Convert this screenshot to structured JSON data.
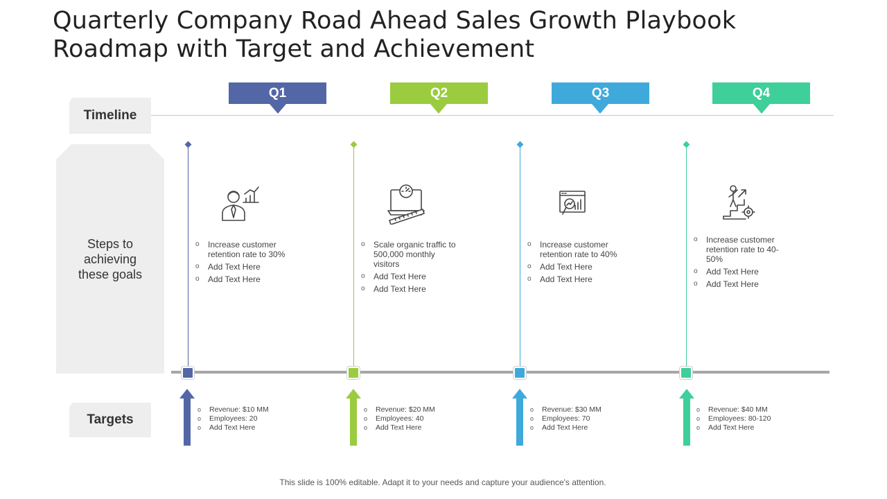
{
  "title": "Quarterly Company Road Ahead Sales Growth Playbook Roadmap with Target and Achievement",
  "row_labels": {
    "timeline": "Timeline",
    "steps": "Steps to achieving these goals",
    "targets": "Targets"
  },
  "quarters": [
    {
      "label": "Q1",
      "color": "#5367a6",
      "icon": "manager-growth-chart-icon",
      "steps": [
        "Increase customer retention rate to 30%",
        "Add Text Here",
        "Add Text Here"
      ],
      "targets": [
        "Revenue: $10 MM",
        "Employees: 20",
        "Add Text Here"
      ]
    },
    {
      "label": "Q2",
      "color": "#9bcb3f",
      "icon": "laptop-speedometer-measure-icon",
      "steps": [
        "Scale organic traffic to 500,000 monthly visitors",
        "Add Text Here",
        "Add Text Here"
      ],
      "targets": [
        "Revenue: $20 MM",
        "Employees: 40",
        "Add Text Here"
      ]
    },
    {
      "label": "Q3",
      "color": "#3fa9dc",
      "icon": "analytics-magnifier-icon",
      "steps": [
        "Increase customer retention rate to 40%",
        "Add Text Here",
        "Add Text Here"
      ],
      "targets": [
        "Revenue: $30 MM",
        "Employees: 70",
        "Add Text Here"
      ]
    },
    {
      "label": "Q4",
      "color": "#3ecf9a",
      "icon": "person-stairs-gear-icon",
      "steps": [
        "Increase customer retention rate to 40-50%",
        "Add Text Here",
        "Add Text Here"
      ],
      "targets": [
        "Revenue: $40 MM",
        "Employees: 80-120",
        "Add Text Here"
      ]
    }
  ],
  "footer": "This slide is 100% editable. Adapt it to your needs and capture your audience's attention."
}
